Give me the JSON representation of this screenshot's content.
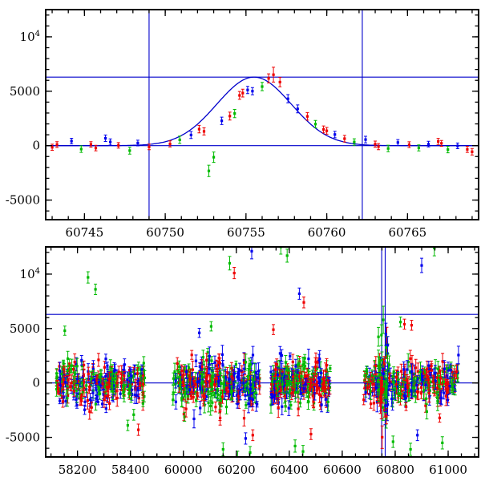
{
  "figure": {
    "title": ""
  },
  "palette": {
    "r": "#ee0000",
    "g": "#00bb00",
    "b": "#0000ee",
    "line": "#0000cc",
    "frame": "#000000"
  },
  "chart_data": [
    {
      "type": "scatter",
      "title": "",
      "xlabel": "",
      "ylabel": "",
      "x_segments": [
        [
          60742.6,
          60769.4
        ]
      ],
      "ylim": [
        -6800,
        12500
      ],
      "xticks": {
        "major": [
          60745,
          60750,
          60755,
          60760,
          60765
        ],
        "labels": [
          "60745",
          "60750",
          "60755",
          "60760",
          "60765"
        ],
        "minor_step": 1
      },
      "yticks": {
        "major": [
          -5000,
          0,
          5000,
          10000
        ],
        "labels": [
          "-5000",
          "0",
          "5000",
          "10^4"
        ],
        "minor_step": 1000
      },
      "hlines": [
        0,
        6300
      ],
      "vlines": [
        60749.0,
        60762.2
      ],
      "model_curve": {
        "shape": "gaussian",
        "t0": 60755.5,
        "sigma": 2.3,
        "amplitude": 6300,
        "baseline": 0,
        "range": [
          60742.6,
          60769.4
        ]
      },
      "points": [
        [
          60743.0,
          -150,
          280,
          "r"
        ],
        [
          60743.3,
          100,
          260,
          "r"
        ],
        [
          60744.2,
          420,
          260,
          "b"
        ],
        [
          60744.8,
          -320,
          300,
          "g"
        ],
        [
          60745.4,
          120,
          250,
          "r"
        ],
        [
          60745.7,
          -220,
          250,
          "r"
        ],
        [
          60746.3,
          680,
          300,
          "b"
        ],
        [
          60746.6,
          340,
          280,
          "b"
        ],
        [
          60747.1,
          30,
          250,
          "r"
        ],
        [
          60747.8,
          -460,
          320,
          "g"
        ],
        [
          60748.3,
          240,
          260,
          "b"
        ],
        [
          60749.0,
          -120,
          260,
          "r"
        ],
        [
          60750.3,
          160,
          280,
          "r"
        ],
        [
          60750.9,
          540,
          340,
          "g"
        ],
        [
          60751.6,
          980,
          320,
          "b"
        ],
        [
          60752.1,
          1520,
          340,
          "r"
        ],
        [
          60752.4,
          1310,
          330,
          "r"
        ],
        [
          60752.7,
          -2320,
          520,
          "g"
        ],
        [
          60753.0,
          -1060,
          480,
          "g"
        ],
        [
          60753.5,
          2280,
          340,
          "b"
        ],
        [
          60754.0,
          2720,
          360,
          "r"
        ],
        [
          60754.3,
          2950,
          380,
          "g"
        ],
        [
          60754.6,
          4620,
          360,
          "r"
        ],
        [
          60754.8,
          4830,
          360,
          "r"
        ],
        [
          60755.1,
          5120,
          330,
          "b"
        ],
        [
          60755.4,
          5010,
          330,
          "b"
        ],
        [
          60756.0,
          5430,
          380,
          "g"
        ],
        [
          60756.4,
          6180,
          420,
          "r"
        ],
        [
          60756.7,
          6520,
          680,
          "r"
        ],
        [
          60757.1,
          5840,
          430,
          "r"
        ],
        [
          60757.6,
          4310,
          380,
          "b"
        ],
        [
          60758.2,
          3380,
          360,
          "b"
        ],
        [
          60758.8,
          2690,
          350,
          "r"
        ],
        [
          60759.3,
          1980,
          340,
          "g"
        ],
        [
          60759.8,
          1490,
          320,
          "r"
        ],
        [
          60760.0,
          1360,
          310,
          "r"
        ],
        [
          60760.5,
          1020,
          300,
          "b"
        ],
        [
          60761.1,
          640,
          300,
          "r"
        ],
        [
          60761.7,
          330,
          300,
          "g"
        ],
        [
          60762.4,
          560,
          300,
          "b"
        ],
        [
          60763.0,
          140,
          280,
          "r"
        ],
        [
          60763.2,
          -90,
          280,
          "r"
        ],
        [
          60763.8,
          -260,
          300,
          "g"
        ],
        [
          60764.4,
          290,
          270,
          "b"
        ],
        [
          60765.1,
          90,
          260,
          "r"
        ],
        [
          60765.7,
          -210,
          280,
          "g"
        ],
        [
          60766.3,
          140,
          260,
          "b"
        ],
        [
          60766.9,
          390,
          280,
          "r"
        ],
        [
          60767.1,
          210,
          270,
          "r"
        ],
        [
          60767.5,
          -360,
          300,
          "g"
        ],
        [
          60768.1,
          -20,
          260,
          "b"
        ],
        [
          60768.7,
          -340,
          280,
          "r"
        ],
        [
          60769.0,
          -560,
          300,
          "r"
        ]
      ]
    },
    {
      "type": "scatter",
      "title": "",
      "xlabel": "",
      "ylabel": "",
      "x_segments": [
        [
          58080,
          58500
        ],
        [
          59900,
          61115
        ]
      ],
      "ylim": [
        -6800,
        12500
      ],
      "xticks": {
        "major": [
          58200,
          58400,
          60000,
          60200,
          60400,
          60600,
          60800,
          61000
        ],
        "labels": [
          "58200",
          "58400",
          "60000",
          "60200",
          "60400",
          "60600",
          "60800",
          "61000"
        ],
        "minor_step": 50
      },
      "yticks": {
        "major": [
          -5000,
          0,
          5000,
          10000
        ],
        "labels": [
          "-5000",
          "0",
          "5000",
          "10^4"
        ],
        "minor_step": 1000
      },
      "hlines": [
        0,
        6300
      ],
      "vlines": [
        60749.0,
        60762.2
      ],
      "seed": 1234,
      "clusters": [
        {
          "t_min": 58120,
          "t_max": 58455,
          "n": 300,
          "y_sigma": 950,
          "err_min": 250,
          "err_max": 800
        },
        {
          "t_min": 59960,
          "t_max": 60290,
          "n": 340,
          "y_sigma": 1100,
          "err_min": 250,
          "err_max": 900
        },
        {
          "t_min": 60330,
          "t_max": 60555,
          "n": 270,
          "y_sigma": 1050,
          "err_min": 250,
          "err_max": 900
        },
        {
          "t_min": 60680,
          "t_max": 61040,
          "n": 300,
          "y_sigma": 1000,
          "err_min": 250,
          "err_max": 900
        },
        {
          "t_min": 60735,
          "t_max": 60772,
          "n": 55,
          "y_sigma": 1900,
          "err_min": 500,
          "err_max": 1600
        }
      ],
      "points": [
        [
          58152,
          4800,
          420,
          "g"
        ],
        [
          58240,
          9700,
          520,
          "g"
        ],
        [
          58268,
          8600,
          480,
          "g"
        ],
        [
          58390,
          -3900,
          480,
          "g"
        ],
        [
          58430,
          -4300,
          520,
          "r"
        ],
        [
          60060,
          4600,
          420,
          "b"
        ],
        [
          60105,
          5200,
          430,
          "g"
        ],
        [
          60150,
          -6100,
          600,
          "g"
        ],
        [
          60175,
          11000,
          620,
          "g"
        ],
        [
          60192,
          10100,
          520,
          "r"
        ],
        [
          60205,
          -6900,
          620,
          "g"
        ],
        [
          60235,
          -5100,
          520,
          "b"
        ],
        [
          60252,
          -6400,
          560,
          "g"
        ],
        [
          60258,
          12100,
          700,
          "b"
        ],
        [
          60262,
          -4800,
          500,
          "r"
        ],
        [
          60340,
          4900,
          460,
          "r"
        ],
        [
          60368,
          12500,
          660,
          "g"
        ],
        [
          60392,
          11700,
          600,
          "g"
        ],
        [
          60422,
          -5800,
          560,
          "g"
        ],
        [
          60438,
          8200,
          520,
          "b"
        ],
        [
          60452,
          -6300,
          560,
          "g"
        ],
        [
          60455,
          7400,
          500,
          "r"
        ],
        [
          60482,
          -4700,
          500,
          "r"
        ],
        [
          60748,
          4400,
          950,
          "g"
        ],
        [
          60755,
          5800,
          1250,
          "g"
        ],
        [
          60792,
          -5400,
          520,
          "g"
        ],
        [
          60820,
          5600,
          460,
          "g"
        ],
        [
          60835,
          5400,
          460,
          "r"
        ],
        [
          60858,
          -6100,
          560,
          "g"
        ],
        [
          60862,
          5300,
          460,
          "r"
        ],
        [
          60884,
          -4800,
          500,
          "b"
        ],
        [
          60900,
          10800,
          660,
          "b"
        ],
        [
          60948,
          12400,
          720,
          "g"
        ],
        [
          60978,
          -5500,
          560,
          "g"
        ]
      ]
    }
  ]
}
